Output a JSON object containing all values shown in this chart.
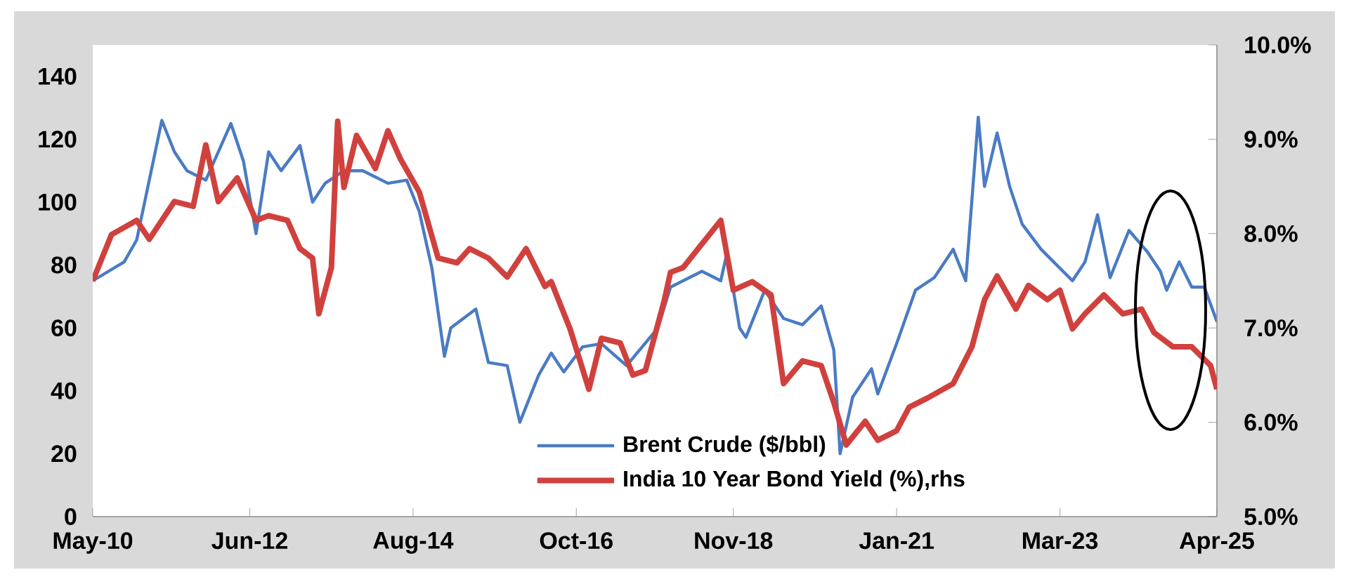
{
  "chart_data": {
    "type": "line",
    "xlim": [
      "2010-05",
      "2025-04"
    ],
    "xticks": [
      {
        "value": "2010-05",
        "label": "May-10"
      },
      {
        "value": "2012-06",
        "label": "Jun-12"
      },
      {
        "value": "2014-08",
        "label": "Aug-14"
      },
      {
        "value": "2016-10",
        "label": "Oct-16"
      },
      {
        "value": "2018-11",
        "label": "Nov-18"
      },
      {
        "value": "2021-01",
        "label": "Jan-21"
      },
      {
        "value": "2023-03",
        "label": "Mar-23"
      },
      {
        "value": "2025-04",
        "label": "Apr-25"
      }
    ],
    "ylim": [
      0,
      150
    ],
    "yticks": [
      0,
      20,
      40,
      60,
      80,
      100,
      120,
      140
    ],
    "y2lim": [
      5,
      10
    ],
    "y2ticks": [
      {
        "value": 5,
        "label": "5.0%"
      },
      {
        "value": 6,
        "label": "6.0%"
      },
      {
        "value": 7,
        "label": "7.0%"
      },
      {
        "value": 8,
        "label": "8.0%"
      },
      {
        "value": 9,
        "label": "9.0%"
      },
      {
        "value": 10,
        "label": "10.0%"
      }
    ],
    "legend": "bottom",
    "grid": false,
    "series": [
      {
        "name": "Brent Crude ($/bbl)",
        "color": "#4a7bc4",
        "x": [
          "2010-05",
          "2010-10",
          "2010-12",
          "2011-02",
          "2011-04",
          "2011-06",
          "2011-08",
          "2011-11",
          "2012-03",
          "2012-05",
          "2012-07",
          "2012-09",
          "2012-11",
          "2013-02",
          "2013-04",
          "2013-06",
          "2013-09",
          "2013-12",
          "2014-04",
          "2014-07",
          "2014-09",
          "2014-11",
          "2015-01",
          "2015-02",
          "2015-06",
          "2015-08",
          "2015-11",
          "2016-01",
          "2016-04",
          "2016-06",
          "2016-08",
          "2016-11",
          "2017-02",
          "2017-06",
          "2017-11",
          "2018-01",
          "2018-06",
          "2018-09",
          "2018-10",
          "2018-12",
          "2019-01",
          "2019-04",
          "2019-07",
          "2019-10",
          "2020-01",
          "2020-03",
          "2020-04",
          "2020-06",
          "2020-09",
          "2020-10",
          "2021-01",
          "2021-04",
          "2021-07",
          "2021-10",
          "2021-12",
          "2022-02",
          "2022-03",
          "2022-05",
          "2022-07",
          "2022-09",
          "2022-12",
          "2023-02",
          "2023-05",
          "2023-07",
          "2023-09",
          "2023-11",
          "2024-02",
          "2024-05",
          "2024-07",
          "2024-08",
          "2024-10",
          "2024-12",
          "2025-02",
          "2025-04"
        ],
        "values": [
          75,
          81,
          88,
          107,
          126,
          116,
          110,
          107,
          125,
          113,
          90,
          116,
          110,
          118,
          100,
          106,
          110,
          110,
          106,
          107,
          97,
          79,
          51,
          60,
          66,
          49,
          48,
          30,
          45,
          52,
          46,
          54,
          55,
          48,
          60,
          73,
          78,
          75,
          84,
          60,
          57,
          72,
          63,
          61,
          67,
          53,
          20,
          38,
          47,
          39,
          55,
          72,
          76,
          85,
          75,
          127,
          105,
          122,
          105,
          93,
          85,
          81,
          75,
          81,
          96,
          76,
          91,
          84,
          78,
          72,
          81,
          73,
          73,
          62
        ]
      },
      {
        "name": "India 10 Year Bond Yield (%),rhs",
        "color": "#d0413e",
        "axis": "y2",
        "x": [
          "2010-05",
          "2010-08",
          "2010-12",
          "2011-02",
          "2011-06",
          "2011-09",
          "2011-11",
          "2012-01",
          "2012-04",
          "2012-07",
          "2012-09",
          "2012-12",
          "2013-02",
          "2013-04",
          "2013-05",
          "2013-07",
          "2013-08",
          "2013-09",
          "2013-11",
          "2014-02",
          "2014-04",
          "2014-06",
          "2014-09",
          "2014-12",
          "2015-03",
          "2015-05",
          "2015-08",
          "2015-11",
          "2016-02",
          "2016-05",
          "2016-06",
          "2016-09",
          "2016-12",
          "2017-02",
          "2017-05",
          "2017-07",
          "2017-09",
          "2017-12",
          "2018-01",
          "2018-03",
          "2018-06",
          "2018-09",
          "2018-11",
          "2019-02",
          "2019-05",
          "2019-07",
          "2019-10",
          "2020-01",
          "2020-03",
          "2020-05",
          "2020-08",
          "2020-10",
          "2021-01",
          "2021-03",
          "2021-06",
          "2021-10",
          "2022-01",
          "2022-03",
          "2022-05",
          "2022-08",
          "2022-10",
          "2023-01",
          "2023-03",
          "2023-05",
          "2023-07",
          "2023-10",
          "2024-01",
          "2024-04",
          "2024-06",
          "2024-09",
          "2024-12",
          "2025-03",
          "2025-04"
        ],
        "values": [
          7.5,
          7.99,
          8.14,
          7.94,
          8.34,
          8.29,
          8.94,
          8.34,
          8.59,
          8.14,
          8.19,
          8.14,
          7.84,
          7.74,
          7.15,
          7.64,
          9.19,
          8.49,
          9.04,
          8.69,
          9.09,
          8.79,
          8.44,
          7.74,
          7.69,
          7.84,
          7.74,
          7.54,
          7.84,
          7.44,
          7.49,
          6.99,
          6.35,
          6.89,
          6.84,
          6.5,
          6.55,
          7.29,
          7.59,
          7.64,
          7.89,
          8.14,
          7.4,
          7.49,
          7.35,
          6.41,
          6.65,
          6.6,
          6.21,
          5.76,
          6.01,
          5.81,
          5.91,
          6.16,
          6.26,
          6.41,
          6.8,
          7.3,
          7.55,
          7.2,
          7.45,
          7.3,
          7.4,
          6.99,
          7.15,
          7.35,
          7.15,
          7.2,
          6.95,
          6.8,
          6.8,
          6.6,
          6.35
        ]
      }
    ]
  }
}
